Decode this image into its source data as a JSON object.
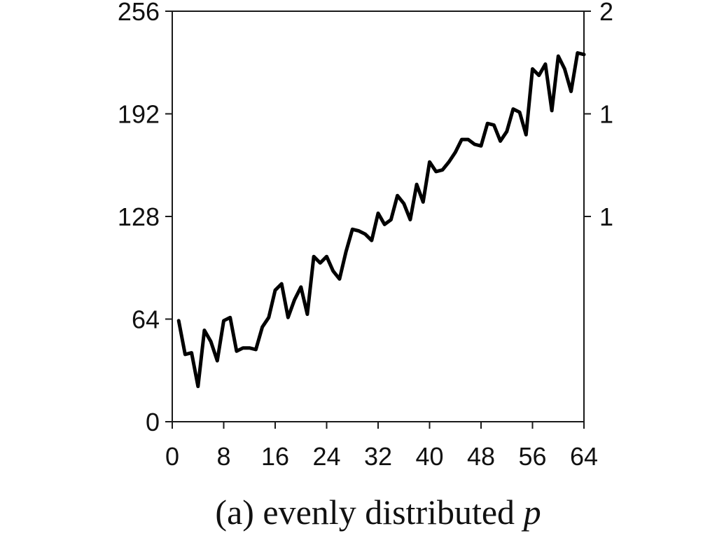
{
  "chart_data": {
    "type": "line",
    "title": "",
    "caption": {
      "prefix": "(a) evenly distributed ",
      "variable": "p"
    },
    "xlabel": "",
    "ylabel": "",
    "xlim": [
      0,
      64
    ],
    "ylim": [
      0,
      256
    ],
    "x_ticks": [
      0,
      8,
      16,
      24,
      32,
      40,
      48,
      56,
      64
    ],
    "y_ticks": [
      0,
      64,
      128,
      192,
      256
    ],
    "right_axis_tick_labels": [
      "2",
      "1",
      "1"
    ],
    "grid": false,
    "legend": "none",
    "line_color": "#000000",
    "series": [
      {
        "x": [
          1,
          2,
          3,
          4,
          5,
          6,
          7,
          8,
          9,
          10,
          11,
          12,
          13,
          14,
          15,
          16,
          17,
          18,
          19,
          20,
          21,
          22,
          23,
          24,
          25,
          26,
          27,
          28,
          29,
          30,
          31,
          32,
          33,
          34,
          35,
          36,
          37,
          38,
          39,
          40,
          41,
          42,
          43,
          44,
          45,
          46,
          47,
          48,
          49,
          50,
          51,
          52,
          53,
          54,
          55,
          56,
          57,
          58,
          59,
          60,
          61,
          62,
          63,
          64
        ],
        "values": [
          63,
          42,
          43,
          22,
          57,
          50,
          38,
          63,
          65,
          44,
          46,
          46,
          45,
          59,
          65,
          82,
          86,
          65,
          76,
          84,
          67,
          103,
          99,
          103,
          94,
          89,
          106,
          120,
          119,
          117,
          113,
          130,
          123,
          126,
          141,
          136,
          126,
          148,
          137,
          162,
          156,
          157,
          162,
          168,
          176,
          176,
          173,
          172,
          186,
          185,
          175,
          181,
          195,
          193,
          179,
          220,
          216,
          223,
          194,
          228,
          220,
          206,
          230,
          229
        ]
      }
    ]
  }
}
